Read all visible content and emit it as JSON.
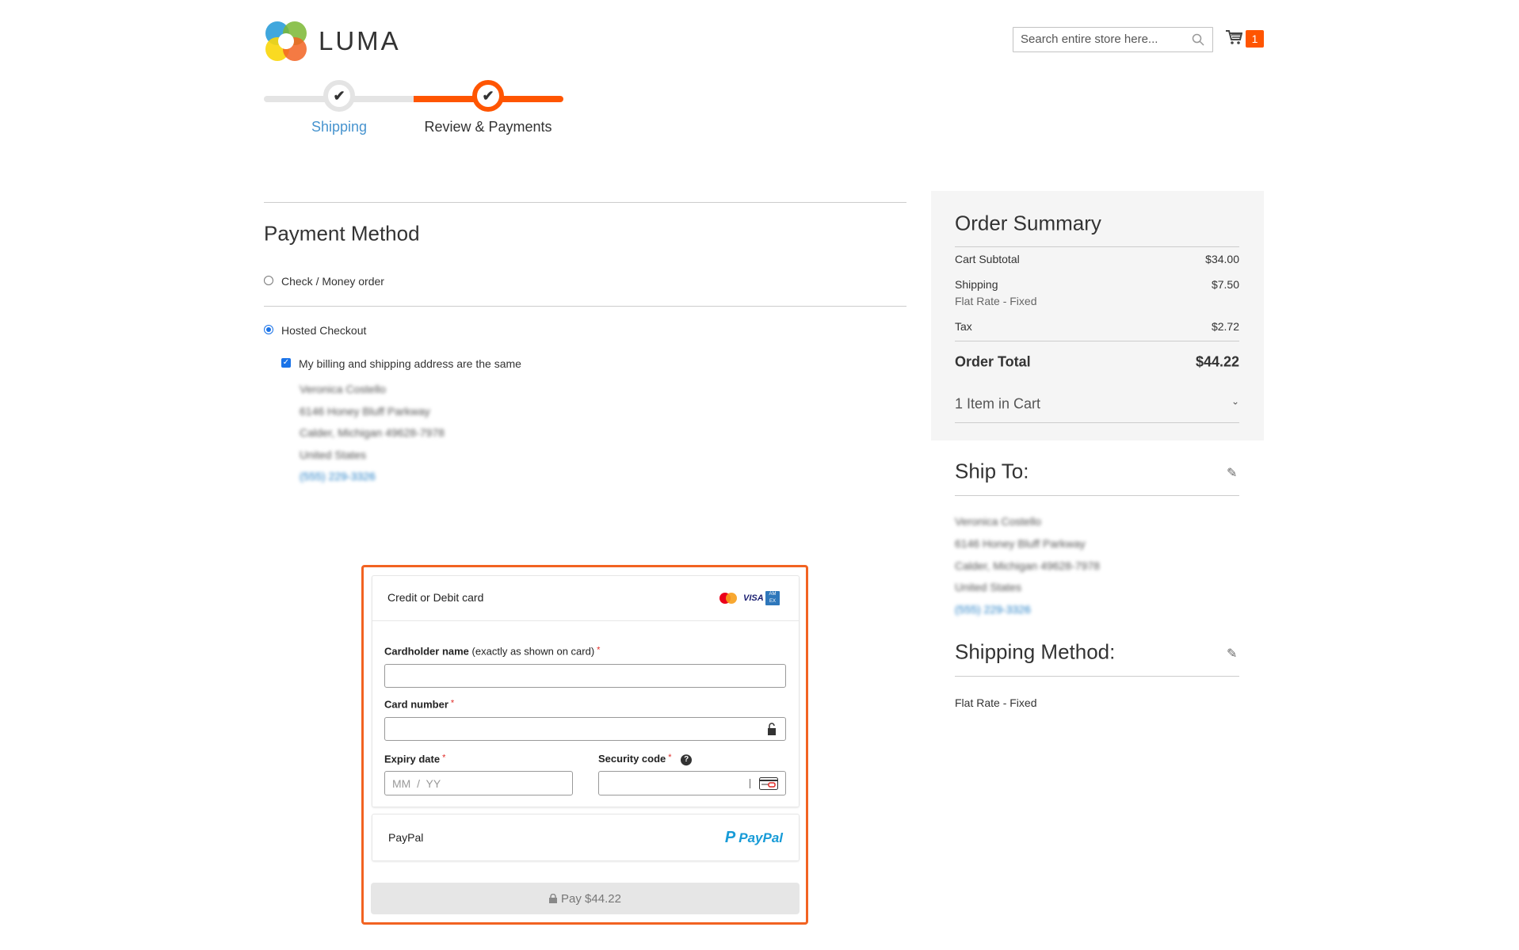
{
  "header": {
    "logo_text": "LUMA",
    "search": {
      "placeholder": "Search entire store here...",
      "value": ""
    },
    "cart_count": "1",
    "accent_color": "#ff5501"
  },
  "progress": {
    "steps": [
      {
        "label": "Shipping",
        "state": "complete"
      },
      {
        "label": "Review & Payments",
        "state": "active"
      }
    ]
  },
  "payment": {
    "title": "Payment Method",
    "methods": [
      {
        "label": "Check / Money order",
        "selected": false
      },
      {
        "label": "Hosted Checkout",
        "selected": true
      }
    ],
    "same_address_label": "My billing and shipping address are the same",
    "same_address_checked": true,
    "billing_address": [
      "Veronica Costello",
      "6146 Honey Bluff Parkway",
      "Calder, Michigan 49628-7978",
      "United States",
      "(555) 229-3326"
    ]
  },
  "hosted": {
    "card_title": "Credit or Debit card",
    "card_brands": [
      "mastercard",
      "visa",
      "amex"
    ],
    "visa_text": "VISA",
    "cardholder_label": "Cardholder name",
    "cardholder_hint": "(exactly as shown on card)",
    "card_number_label": "Card number",
    "expiry_label": "Expiry date",
    "expiry_placeholder": "MM  /  YY",
    "security_label": "Security code",
    "required_mark": "*",
    "paypal_label": "PayPal",
    "paypal_logo_text": "PayPal",
    "pay_button": "Pay $44.22"
  },
  "summary": {
    "title": "Order Summary",
    "subtotal_label": "Cart Subtotal",
    "subtotal": "$34.00",
    "shipping_label": "Shipping",
    "shipping": "$7.50",
    "shipping_method": "Flat Rate - Fixed",
    "tax_label": "Tax",
    "tax": "$2.72",
    "total_label": "Order Total",
    "total": "$44.22",
    "items_label": "1 Item in Cart"
  },
  "ship_to": {
    "title": "Ship To:",
    "address": [
      "Veronica Costello",
      "6146 Honey Bluff Parkway",
      "Calder, Michigan 49628-7978",
      "United States",
      "(555) 229-3326"
    ]
  },
  "shipping_method": {
    "title": "Shipping Method:",
    "value": "Flat Rate - Fixed"
  }
}
